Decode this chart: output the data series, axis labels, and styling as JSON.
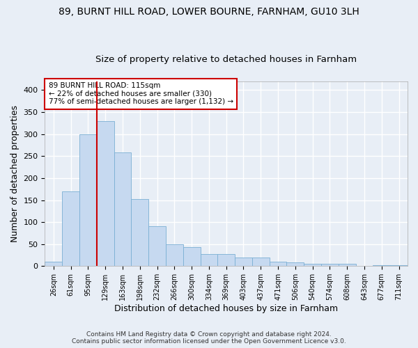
{
  "title1": "89, BURNT HILL ROAD, LOWER BOURNE, FARNHAM, GU10 3LH",
  "title2": "Size of property relative to detached houses in Farnham",
  "xlabel": "Distribution of detached houses by size in Farnham",
  "ylabel": "Number of detached properties",
  "bar_labels": [
    "26sqm",
    "61sqm",
    "95sqm",
    "129sqm",
    "163sqm",
    "198sqm",
    "232sqm",
    "266sqm",
    "300sqm",
    "334sqm",
    "369sqm",
    "403sqm",
    "437sqm",
    "471sqm",
    "506sqm",
    "540sqm",
    "574sqm",
    "608sqm",
    "643sqm",
    "677sqm",
    "711sqm"
  ],
  "bar_values": [
    10,
    170,
    300,
    330,
    258,
    152,
    90,
    50,
    43,
    27,
    27,
    20,
    20,
    10,
    9,
    5,
    5,
    5,
    1,
    2,
    2
  ],
  "bar_color": "#c6d9f0",
  "bar_edge_color": "#7aafd4",
  "vline_x": 2.5,
  "vline_color": "#cc0000",
  "annotation_text": "89 BURNT HILL ROAD: 115sqm\n← 22% of detached houses are smaller (330)\n77% of semi-detached houses are larger (1,132) →",
  "annotation_box_color": "#ffffff",
  "annotation_box_edge": "#cc0000",
  "ylim": [
    0,
    420
  ],
  "yticks": [
    0,
    50,
    100,
    150,
    200,
    250,
    300,
    350,
    400
  ],
  "footer": "Contains HM Land Registry data © Crown copyright and database right 2024.\nContains public sector information licensed under the Open Government Licence v3.0.",
  "bg_color": "#e8eef6",
  "grid_color": "#ffffff",
  "title1_fontsize": 10,
  "title2_fontsize": 9.5,
  "xlabel_fontsize": 9,
  "ylabel_fontsize": 9
}
